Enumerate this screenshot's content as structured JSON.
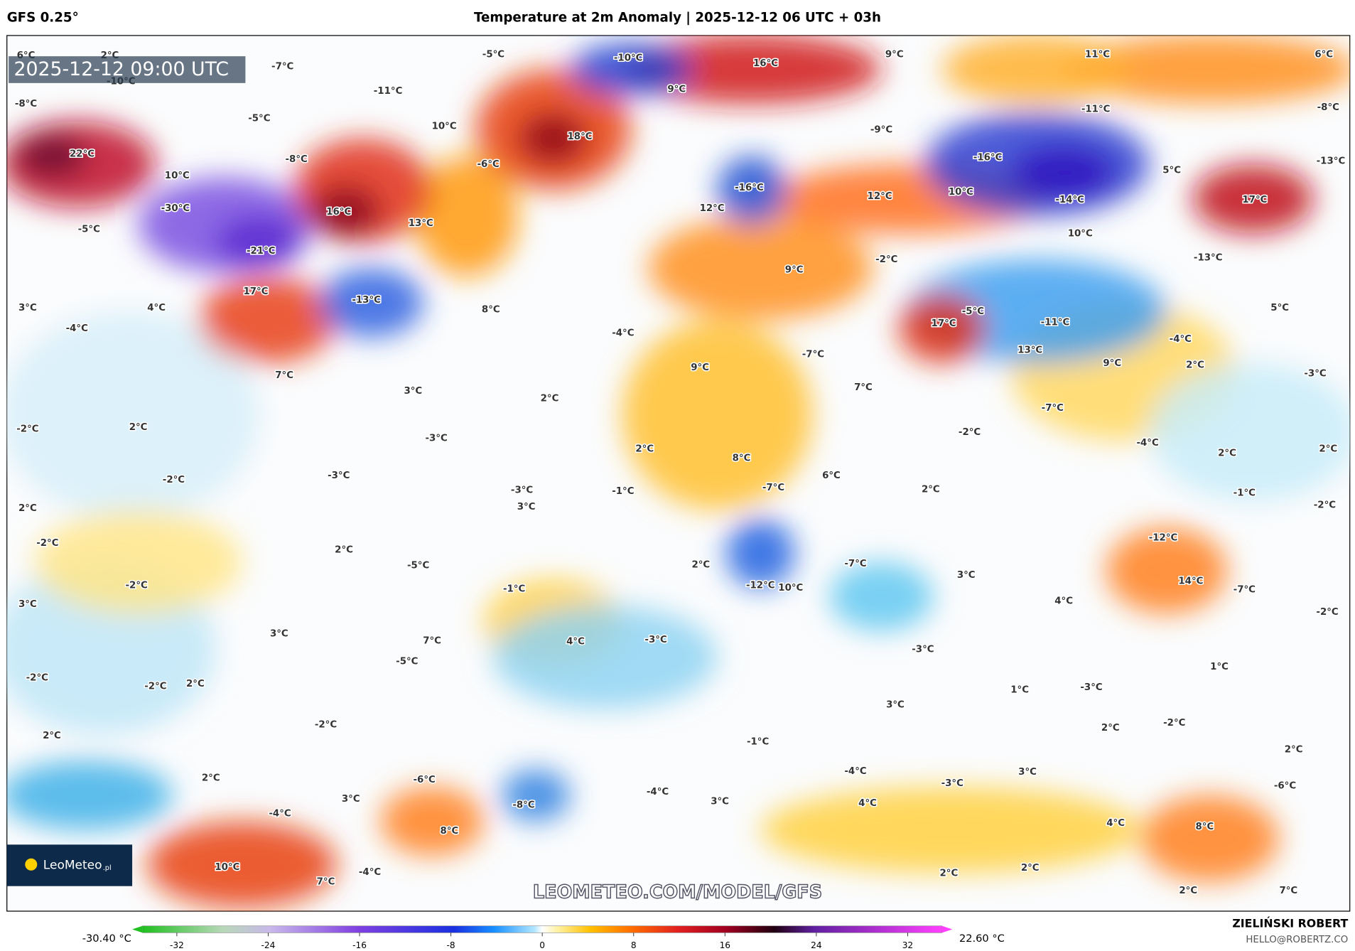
{
  "header": {
    "model": "GFS 0.25°",
    "title": "Temperature at 2m Anomaly | 2025-12-12 06 UTC + 03h"
  },
  "map": {
    "valid_time": "2025-12-12 09:00 UTC",
    "watermark": "LEOMETEO.COM/MODEL/GFS",
    "logo": "LeoMeteo",
    "logo_suffix": ".pl",
    "labels": [
      "6°C",
      "2°C",
      "-7°C",
      "-10°C",
      "-8°C",
      "-5°C",
      "-10°C",
      "16°C",
      "9°C",
      "11°C",
      "6°C",
      "-11°C",
      "9°C",
      "-11°C",
      "-8°C",
      "-5°C",
      "10°C",
      "18°C",
      "-9°C",
      "22°C",
      "-8°C",
      "-6°C",
      "-16°C",
      "-13°C",
      "10°C",
      "5°C",
      "-16°C",
      "-30°C",
      "16°C",
      "12°C",
      "12°C",
      "10°C",
      "-14°C",
      "17°C",
      "-5°C",
      "13°C",
      "10°C",
      "-21°C",
      "-2°C",
      "-13°C",
      "9°C",
      "17°C",
      "-13°C",
      "3°C",
      "4°C",
      "8°C",
      "-5°C",
      "5°C",
      "-4°C",
      "-4°C",
      "17°C",
      "-11°C",
      "-4°C",
      "-7°C",
      "13°C",
      "9°C",
      "9°C",
      "7°C",
      "2°C",
      "-3°C",
      "7°C",
      "3°C",
      "2°C",
      "-7°C",
      "-2°C",
      "2°C",
      "-2°C",
      "-3°C",
      "-4°C",
      "2°C",
      "8°C",
      "2°C",
      "2°C",
      "-2°C",
      "-3°C",
      "6°C",
      "-7°C",
      "-3°C",
      "-1°C",
      "2°C",
      "-1°C",
      "2°C",
      "3°C",
      "-2°C",
      "-2°C",
      "-12°C",
      "2°C",
      "-5°C",
      "2°C",
      "-7°C",
      "-2°C",
      "-12°C",
      "10°C",
      "-1°C",
      "3°C",
      "14°C",
      "-7°C",
      "3°C",
      "4°C",
      "3°C",
      "-2°C",
      "7°C",
      "4°C",
      "-3°C",
      "-3°C",
      "-5°C",
      "1°C",
      "-2°C",
      "-2°C",
      "2°C",
      "1°C",
      "-3°C",
      "-2°C",
      "3°C",
      "-2°C",
      "2°C",
      "2°C",
      "-1°C",
      "2°C",
      "-4°C",
      "2°C",
      "-6°C",
      "-3°C",
      "3°C",
      "-6°C",
      "3°C",
      "-4°C",
      "3°C",
      "-8°C",
      "4°C",
      "-4°C",
      "4°C",
      "8°C",
      "8°C",
      "10°C",
      "-4°C",
      "7°C",
      "2°C",
      "2°C",
      "2°C",
      "7°C"
    ]
  },
  "colorbar": {
    "range": [
      -35,
      35
    ],
    "ticks": [
      -32,
      -24,
      -16,
      -8,
      0,
      8,
      16,
      24,
      32
    ],
    "min_label": "-30.40 °C",
    "max_label": "22.60 °C"
  },
  "credits": {
    "author": "ZIELIŃSKI ROBERT",
    "contact": "HELLO@ROBERTZ.CO"
  }
}
